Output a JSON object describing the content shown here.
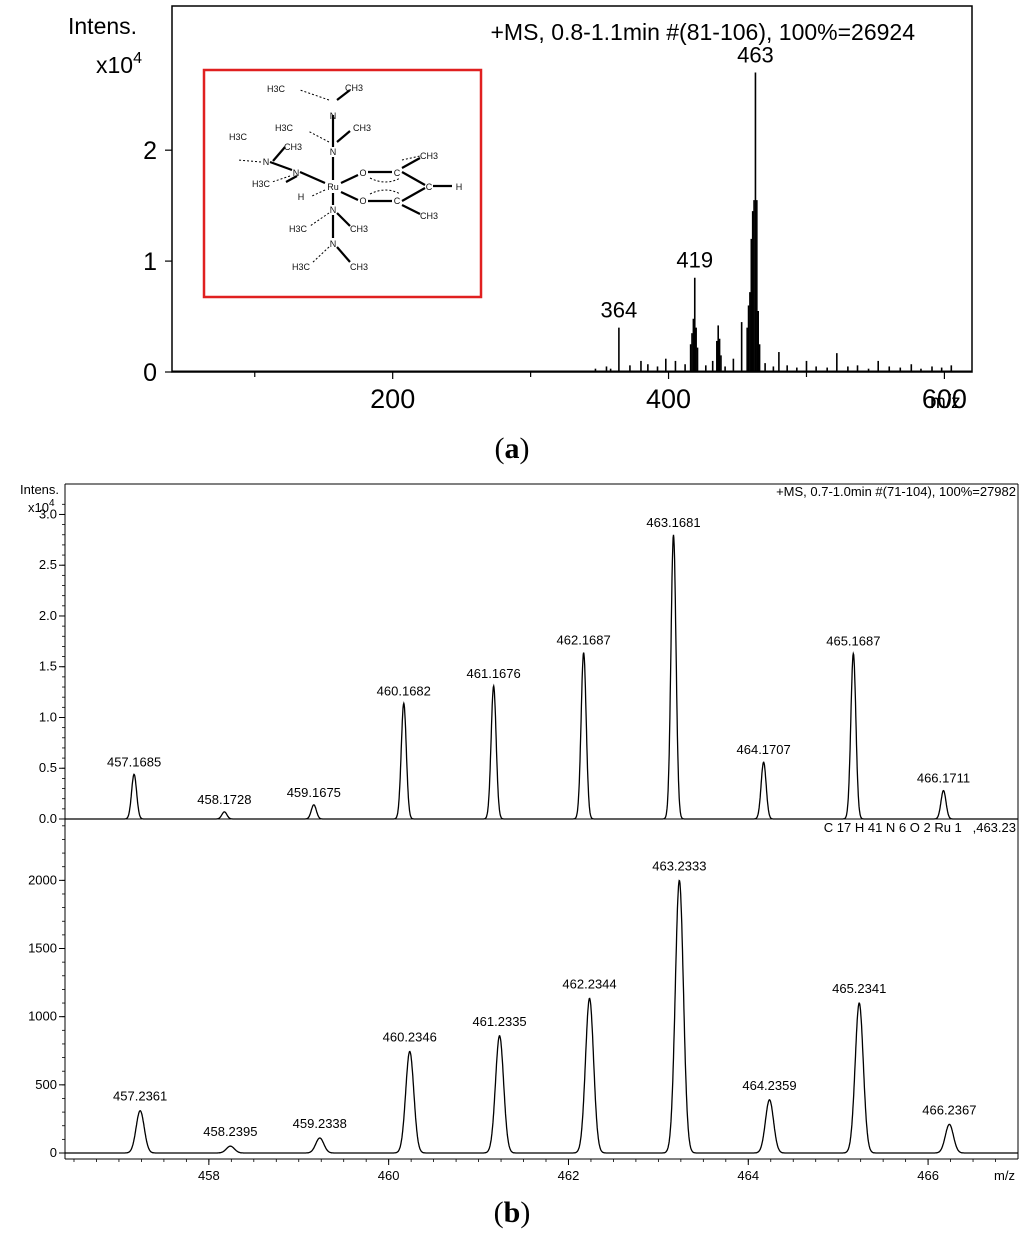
{
  "panel_a_label": "a",
  "panel_b_label": "b",
  "chart_data": [
    {
      "type": "line",
      "panel": "a",
      "title": "+MS, 0.8-1.1min #(81-106), 100%=26924",
      "ylabel_line1": "Intens.",
      "ylabel_line2": "x10",
      "ylabel_exp": "4",
      "xlabel": "m/z",
      "xlim": [
        40,
        620
      ],
      "ylim": [
        0,
        3.3
      ],
      "xticks": [
        200,
        400,
        600
      ],
      "xtick_labels": [
        "200",
        "400",
        "600"
      ],
      "minor_xticks": [
        100,
        300,
        500
      ],
      "yticks": [
        0,
        1,
        2
      ],
      "ytick_labels": [
        "0",
        "1",
        "2"
      ],
      "peaks": [
        {
          "x": 347,
          "y": 0.03
        },
        {
          "x": 355,
          "y": 0.05
        },
        {
          "x": 358,
          "y": 0.03
        },
        {
          "x": 364,
          "y": 0.4
        },
        {
          "x": 372,
          "y": 0.06
        },
        {
          "x": 380,
          "y": 0.1
        },
        {
          "x": 385,
          "y": 0.07
        },
        {
          "x": 392,
          "y": 0.05
        },
        {
          "x": 398,
          "y": 0.12
        },
        {
          "x": 405,
          "y": 0.1
        },
        {
          "x": 412,
          "y": 0.07
        },
        {
          "x": 416,
          "y": 0.25
        },
        {
          "x": 417,
          "y": 0.35
        },
        {
          "x": 418,
          "y": 0.48
        },
        {
          "x": 419,
          "y": 0.85
        },
        {
          "x": 420,
          "y": 0.4
        },
        {
          "x": 421,
          "y": 0.22
        },
        {
          "x": 427,
          "y": 0.06
        },
        {
          "x": 432,
          "y": 0.1
        },
        {
          "x": 435,
          "y": 0.28
        },
        {
          "x": 436,
          "y": 0.42
        },
        {
          "x": 437,
          "y": 0.3
        },
        {
          "x": 438,
          "y": 0.15
        },
        {
          "x": 441,
          "y": 0.05
        },
        {
          "x": 447,
          "y": 0.12
        },
        {
          "x": 453,
          "y": 0.45
        },
        {
          "x": 457,
          "y": 0.4
        },
        {
          "x": 458,
          "y": 0.6
        },
        {
          "x": 459,
          "y": 0.72
        },
        {
          "x": 460,
          "y": 1.2
        },
        {
          "x": 461,
          "y": 1.45
        },
        {
          "x": 462,
          "y": 1.55
        },
        {
          "x": 463,
          "y": 2.7
        },
        {
          "x": 464,
          "y": 1.55
        },
        {
          "x": 465,
          "y": 0.55
        },
        {
          "x": 466,
          "y": 0.25
        },
        {
          "x": 470,
          "y": 0.08
        },
        {
          "x": 476,
          "y": 0.05
        },
        {
          "x": 480,
          "y": 0.18
        },
        {
          "x": 486,
          "y": 0.06
        },
        {
          "x": 493,
          "y": 0.04
        },
        {
          "x": 500,
          "y": 0.1
        },
        {
          "x": 507,
          "y": 0.05
        },
        {
          "x": 515,
          "y": 0.04
        },
        {
          "x": 522,
          "y": 0.17
        },
        {
          "x": 530,
          "y": 0.05
        },
        {
          "x": 537,
          "y": 0.06
        },
        {
          "x": 545,
          "y": 0.03
        },
        {
          "x": 552,
          "y": 0.1
        },
        {
          "x": 560,
          "y": 0.05
        },
        {
          "x": 568,
          "y": 0.04
        },
        {
          "x": 576,
          "y": 0.07
        },
        {
          "x": 583,
          "y": 0.03
        },
        {
          "x": 591,
          "y": 0.05
        },
        {
          "x": 598,
          "y": 0.04
        },
        {
          "x": 605,
          "y": 0.06
        }
      ],
      "peak_labels": [
        {
          "x": 364,
          "y": 0.4,
          "label": "364"
        },
        {
          "x": 419,
          "y": 0.85,
          "label": "419"
        },
        {
          "x": 463,
          "y": 2.7,
          "label": "463"
        }
      ],
      "inset": {
        "box_color": "#e02020",
        "atoms": [
          "H3C",
          "CH3",
          "N",
          "H3C",
          "CH3",
          "N",
          "H3C",
          "N",
          "CH3",
          "H3C",
          "N",
          "Ru",
          "H",
          "O",
          "C",
          "CH3",
          "C",
          "H",
          "O",
          "C",
          "CH3",
          "N",
          "H3C",
          "CH3",
          "N",
          "H3C",
          "CH3"
        ]
      }
    },
    {
      "type": "line",
      "panel": "b-top",
      "title": "+MS, 0.7-1.0min #(71-104), 100%=27982",
      "ylabel_line1": "Intens.",
      "ylabel_line2": "x10",
      "ylabel_exp": "4",
      "xlim": [
        456.4,
        467.0
      ],
      "ylim": [
        0,
        3.3
      ],
      "yticks": [
        0.0,
        0.5,
        1.0,
        1.5,
        2.0,
        2.5,
        3.0
      ],
      "ytick_labels": [
        "0.0",
        "0.5",
        "1.0",
        "1.5",
        "2.0",
        "2.5",
        "3.0"
      ],
      "peaks": [
        {
          "x": 457.1685,
          "y": 0.44,
          "label": "457.1685"
        },
        {
          "x": 458.1728,
          "y": 0.07,
          "label": "458.1728"
        },
        {
          "x": 459.1675,
          "y": 0.14,
          "label": "459.1675"
        },
        {
          "x": 460.1682,
          "y": 1.14,
          "label": "460.1682"
        },
        {
          "x": 461.1676,
          "y": 1.31,
          "label": "461.1676"
        },
        {
          "x": 462.1687,
          "y": 1.64,
          "label": "462.1687"
        },
        {
          "x": 463.1681,
          "y": 2.8,
          "label": "463.1681"
        },
        {
          "x": 464.1707,
          "y": 0.56,
          "label": "464.1707"
        },
        {
          "x": 465.1687,
          "y": 1.63,
          "label": "465.1687"
        },
        {
          "x": 466.1711,
          "y": 0.28,
          "label": "466.1711"
        }
      ]
    },
    {
      "type": "line",
      "panel": "b-bottom",
      "title": "C 17 H 41 N 6 O 2 Ru 1   ,463.23",
      "xlabel": "m/z",
      "xlim": [
        456.4,
        467.0
      ],
      "ylim": [
        0,
        2450
      ],
      "xticks": [
        458,
        460,
        462,
        464,
        466
      ],
      "xtick_labels": [
        "458",
        "460",
        "462",
        "464",
        "466"
      ],
      "yticks": [
        0,
        500,
        1000,
        1500,
        2000
      ],
      "ytick_labels": [
        "0",
        "500",
        "1000",
        "1500",
        "2000"
      ],
      "peaks": [
        {
          "x": 457.2361,
          "y": 310,
          "label": "457.2361"
        },
        {
          "x": 458.2395,
          "y": 50,
          "label": "458.2395"
        },
        {
          "x": 459.2338,
          "y": 110,
          "label": "459.2338"
        },
        {
          "x": 460.2346,
          "y": 745,
          "label": "460.2346"
        },
        {
          "x": 461.2335,
          "y": 860,
          "label": "461.2335"
        },
        {
          "x": 462.2344,
          "y": 1135,
          "label": "462.2344"
        },
        {
          "x": 463.2333,
          "y": 2000,
          "label": "463.2333"
        },
        {
          "x": 464.2359,
          "y": 390,
          "label": "464.2359"
        },
        {
          "x": 465.2341,
          "y": 1100,
          "label": "465.2341"
        },
        {
          "x": 466.2367,
          "y": 210,
          "label": "466.2367"
        }
      ]
    }
  ]
}
